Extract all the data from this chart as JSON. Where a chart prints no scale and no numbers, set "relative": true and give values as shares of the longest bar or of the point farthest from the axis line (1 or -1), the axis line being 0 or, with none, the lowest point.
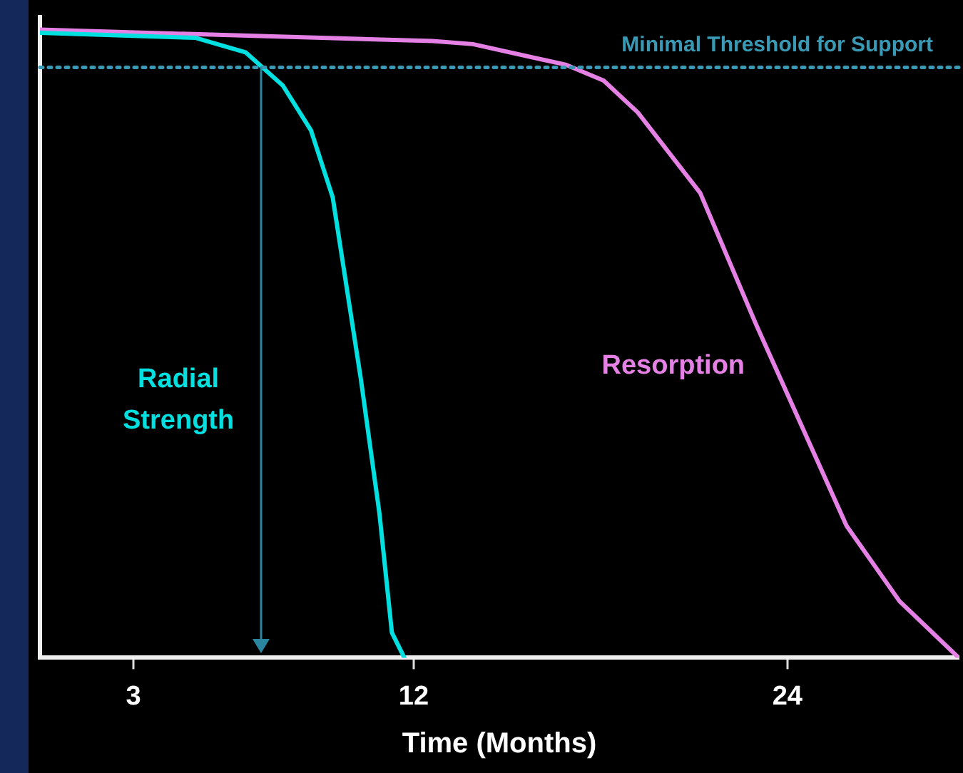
{
  "chart_data": {
    "type": "line",
    "relative": true,
    "xlabel": "Time (Months)",
    "xlim": [
      0,
      29.5
    ],
    "xticks": [
      3,
      12,
      24
    ],
    "grid": false,
    "legend": false,
    "marker": "none",
    "line_style": "solid",
    "series": [
      {
        "name": "Radial Strength",
        "color": "#00e0e0",
        "x": [
          0,
          5,
          6.6,
          7.8,
          8.7,
          9.4,
          10.3,
          10.9,
          11.3,
          11.7
        ],
        "values": [
          0.995,
          0.987,
          0.964,
          0.911,
          0.84,
          0.733,
          0.445,
          0.23,
          0.04,
          0
        ]
      },
      {
        "name": "Resorption",
        "color": "#e580e5",
        "x": [
          0,
          12.6,
          13.9,
          16.9,
          18.1,
          19.2,
          21.2,
          23,
          25.9,
          27.6,
          29.5
        ],
        "values": [
          1,
          0.982,
          0.977,
          0.944,
          0.919,
          0.868,
          0.74,
          0.53,
          0.21,
          0.09,
          0
        ]
      }
    ],
    "ref_lines": [
      {
        "axis": "y",
        "value": 0.94,
        "label": "Minimal Threshold for Support",
        "color": "#3a9ab5",
        "line_style": "dotted"
      },
      {
        "axis": "x",
        "value": 7.1,
        "color": "#2a86a0",
        "line_style": "solid"
      }
    ]
  }
}
